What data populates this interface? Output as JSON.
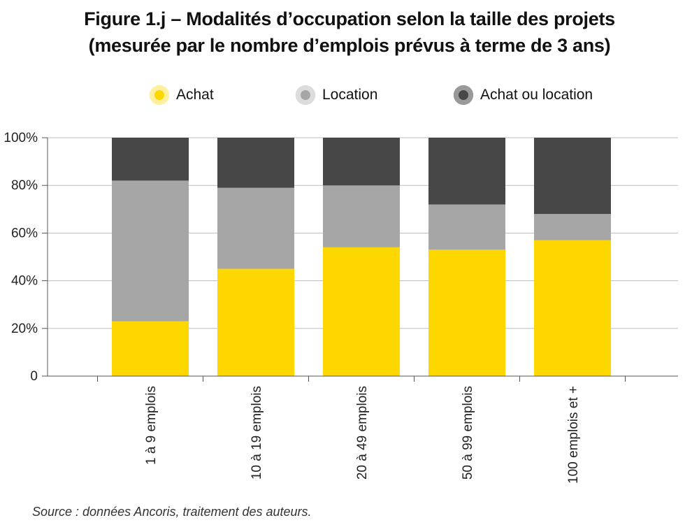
{
  "title_line1": "Figure 1.j – Modalités d’occupation selon la taille des projets",
  "title_line2": "(mesurée par le nombre d’emplois prévus à terme de 3 ans)",
  "legend": [
    {
      "label": "Achat",
      "color": "#FFD700",
      "ring": "#FFF0A0"
    },
    {
      "label": "Location",
      "color": "#A6A6A6",
      "ring": "#DCDCDC"
    },
    {
      "label": "Achat ou location",
      "color": "#474747",
      "ring": "#9A9A9A"
    }
  ],
  "source": "Source : données Ancoris, traitement des auteurs.",
  "chart_data": {
    "type": "bar",
    "stacked": true,
    "categories": [
      "1 à 9 emplois",
      "10 à 19 emplois",
      "20 à 49 emplois",
      "50 à 99 emplois",
      "100 emplois et +"
    ],
    "series": [
      {
        "name": "Achat",
        "color": "#FFD700",
        "values": [
          23,
          45,
          54,
          53,
          57
        ]
      },
      {
        "name": "Location",
        "color": "#A6A6A6",
        "values": [
          59,
          34,
          26,
          19,
          11
        ]
      },
      {
        "name": "Achat ou location",
        "color": "#474747",
        "values": [
          18,
          21,
          20,
          28,
          32
        ]
      }
    ],
    "yticks": [
      "0",
      "20%",
      "40%",
      "60%",
      "80%",
      "100%"
    ],
    "ylim": [
      0,
      100
    ],
    "grid": true,
    "legend_position": "top"
  }
}
